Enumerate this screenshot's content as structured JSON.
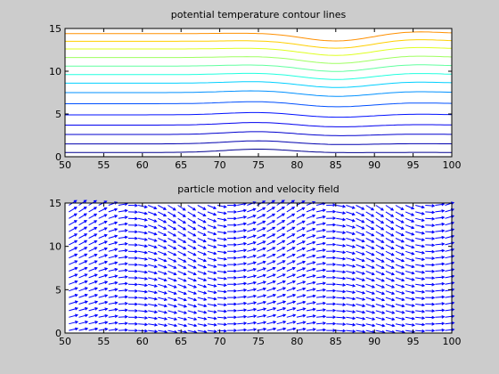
{
  "colors": {
    "figure_background": "#cccccc",
    "axes_background": "#ffffff",
    "arrow_color": "#0000ff",
    "contour_colormap": "jet"
  },
  "chart_data": [
    {
      "type": "contour",
      "title": "potential temperature contour lines",
      "xlabel": "",
      "ylabel": "",
      "xlim": [
        50,
        100
      ],
      "ylim": [
        0,
        15
      ],
      "xticks": [
        "50",
        "55",
        "60",
        "65",
        "70",
        "75",
        "80",
        "85",
        "90",
        "95",
        "100"
      ],
      "yticks": [
        "0",
        "5",
        "10",
        "15"
      ],
      "grid": false,
      "levels": [
        {
          "y": 0.5,
          "color": "#00008f"
        },
        {
          "y": 1.5,
          "color": "#0000b0"
        },
        {
          "y": 2.6,
          "color": "#0000cf"
        },
        {
          "y": 3.7,
          "color": "#0000ef"
        },
        {
          "y": 4.9,
          "color": "#0010ff"
        },
        {
          "y": 6.2,
          "color": "#0050ff"
        },
        {
          "y": 7.5,
          "color": "#0090ff"
        },
        {
          "y": 8.6,
          "color": "#00cfff"
        },
        {
          "y": 9.6,
          "color": "#20ffdf"
        },
        {
          "y": 10.6,
          "color": "#60ff9f"
        },
        {
          "y": 11.6,
          "color": "#9fff60"
        },
        {
          "y": 12.6,
          "color": "#dfff20"
        },
        {
          "y": 13.5,
          "color": "#ffcf00"
        },
        {
          "y": 14.4,
          "color": "#ff9000"
        }
      ],
      "perturbation": {
        "ridge_x": 75,
        "trough_x": 85,
        "width": 6
      }
    },
    {
      "type": "quiver",
      "title": "particle motion and velocity field",
      "xlabel": "",
      "ylabel": "",
      "xlim": [
        50,
        100
      ],
      "ylim": [
        0,
        15
      ],
      "xticks": [
        "50",
        "55",
        "60",
        "65",
        "70",
        "75",
        "80",
        "85",
        "90",
        "95",
        "100"
      ],
      "yticks": [
        "0",
        "5",
        "10",
        "15"
      ],
      "grid": false,
      "x_start": 50.5,
      "x_step": 1.28,
      "x_count": 39,
      "y_start": 0.3,
      "y_step": 0.76,
      "y_count": 20,
      "u": 1.0,
      "wave": {
        "amplitude": 0.55,
        "wavelength": 26,
        "phase_x": 71
      }
    }
  ]
}
